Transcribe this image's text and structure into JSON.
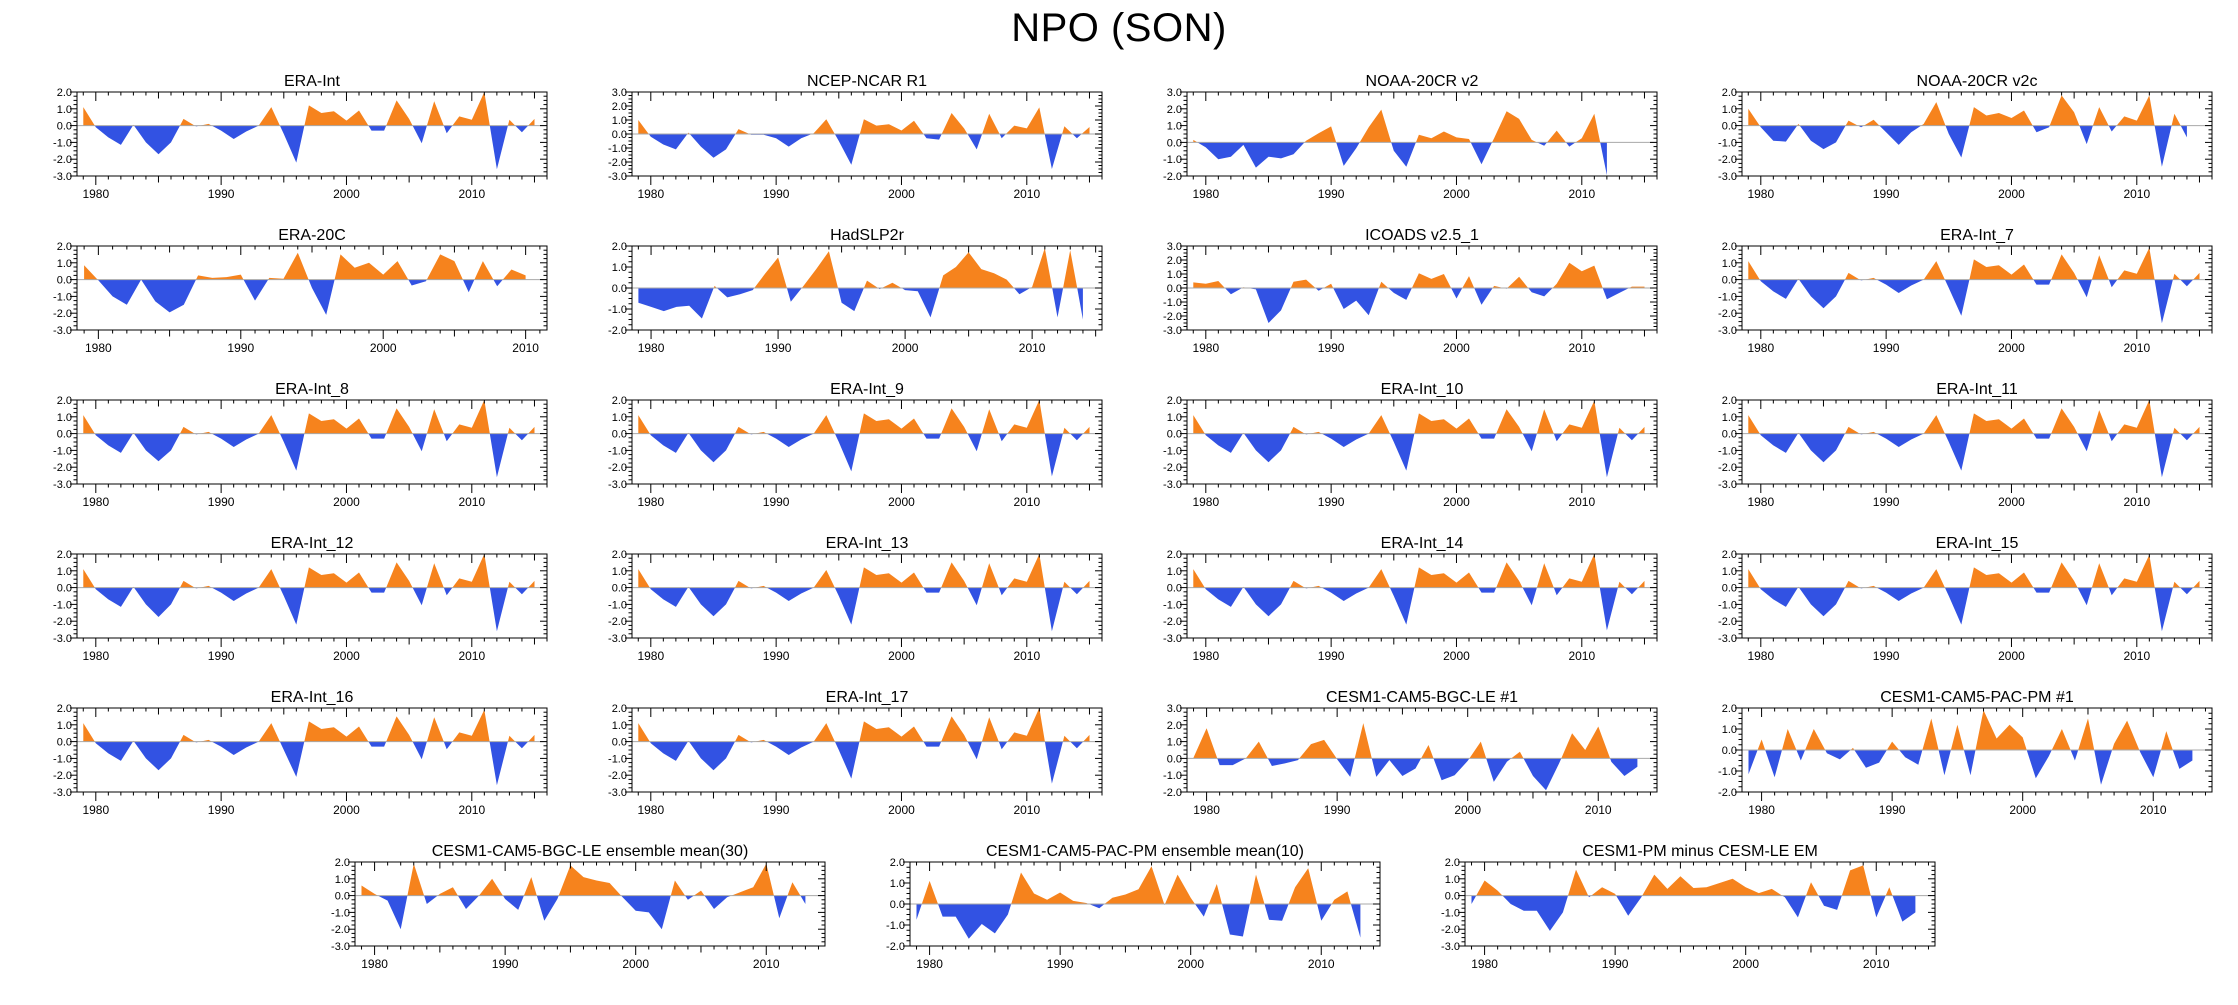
{
  "title": "NPO (SON)",
  "chart_data": {
    "type": "area",
    "common": {
      "x_tick_labels": [
        1980,
        1990,
        2000,
        2010
      ],
      "year_start": 1979,
      "positive_color": "#F6831D",
      "negative_color": "#3252E3",
      "zero_line_color": "#A8A8A8",
      "frame_color": "#000000",
      "grid": false,
      "legend": "none"
    },
    "panels": [
      {
        "title": "ERA-Int",
        "ylim": [
          -3,
          2
        ],
        "xlim": [
          1978.5,
          2016
        ],
        "values": [
          1.1,
          -0.1,
          -0.7,
          -1.15,
          0.05,
          -1.0,
          -1.7,
          -1.0,
          0.4,
          -0.05,
          0.1,
          -0.3,
          -0.8,
          -0.35,
          0.0,
          1.1,
          -0.5,
          -2.2,
          1.2,
          0.75,
          0.85,
          0.3,
          0.9,
          -0.3,
          -0.3,
          1.5,
          0.4,
          -1.05,
          1.45,
          -0.45,
          0.55,
          0.35,
          2.0,
          -2.6,
          0.35,
          -0.4,
          0.4
        ]
      },
      {
        "title": "NCEP-NCAR R1",
        "ylim": [
          -3,
          3
        ],
        "xlim": [
          1978.5,
          2016
        ],
        "values": [
          1.0,
          -0.2,
          -0.75,
          -1.1,
          0.1,
          -0.9,
          -1.7,
          -1.1,
          0.35,
          -0.05,
          -0.05,
          -0.3,
          -0.9,
          -0.3,
          0.05,
          1.05,
          -0.5,
          -2.2,
          1.05,
          0.6,
          0.7,
          0.25,
          0.95,
          -0.3,
          -0.4,
          1.5,
          0.4,
          -1.1,
          1.45,
          -0.3,
          0.6,
          0.4,
          1.9,
          -2.5,
          0.55,
          -0.3,
          0.5
        ]
      },
      {
        "title": "NOAA-20CR v2",
        "ylim": [
          -2,
          3
        ],
        "xlim": [
          1978.5,
          2016
        ],
        "values": [
          0.15,
          -0.3,
          -1.0,
          -0.85,
          -0.15,
          -1.5,
          -0.85,
          -0.95,
          -0.7,
          0.1,
          0.55,
          0.95,
          -1.4,
          -0.35,
          0.9,
          1.95,
          -0.5,
          -1.45,
          0.45,
          0.25,
          0.65,
          0.3,
          0.2,
          -1.3,
          0.25,
          1.85,
          1.4,
          0.15,
          -0.2,
          0.7,
          -0.25,
          0.25,
          1.7,
          -1.95
        ]
      },
      {
        "title": "NOAA-20CR v2c",
        "ylim": [
          -3,
          2
        ],
        "xlim": [
          1978.5,
          2016
        ],
        "values": [
          1.0,
          -0.1,
          -0.9,
          -0.95,
          0.1,
          -0.9,
          -1.4,
          -1.0,
          0.3,
          -0.1,
          0.35,
          -0.4,
          -1.15,
          -0.4,
          0.1,
          1.4,
          -0.5,
          -1.9,
          1.1,
          0.6,
          0.75,
          0.45,
          0.9,
          -0.4,
          -0.1,
          1.8,
          0.8,
          -1.1,
          1.1,
          -0.35,
          0.55,
          0.3,
          1.8,
          -2.45,
          0.7,
          -0.7
        ]
      },
      {
        "title": "ERA-20C",
        "ylim": [
          -3,
          2
        ],
        "xlim": [
          1978.5,
          2011.5
        ],
        "values": [
          0.85,
          -0.05,
          -1.0,
          -1.5,
          0.0,
          -1.3,
          -1.95,
          -1.5,
          0.25,
          0.1,
          0.15,
          0.3,
          -1.25,
          0.1,
          0.05,
          1.6,
          -0.5,
          -2.1,
          1.5,
          0.7,
          1.0,
          0.3,
          1.1,
          -0.35,
          -0.1,
          1.5,
          1.1,
          -0.75,
          1.1,
          -0.4,
          0.6,
          0.25
        ]
      },
      {
        "title": "HadSLP2r",
        "ylim": [
          -2,
          2
        ],
        "xlim": [
          1978.5,
          2015.5
        ],
        "values": [
          -0.7,
          -0.9,
          -1.1,
          -0.9,
          -0.85,
          -1.45,
          0.1,
          -0.45,
          -0.3,
          -0.1,
          0.7,
          1.45,
          -0.65,
          0.1,
          0.9,
          1.75,
          -0.7,
          -1.1,
          0.35,
          -0.05,
          0.25,
          -0.1,
          -0.15,
          -1.4,
          0.6,
          1.0,
          1.7,
          0.9,
          0.7,
          0.4,
          -0.3,
          0.05,
          1.9,
          -1.4,
          1.8,
          -1.5
        ]
      },
      {
        "title": "ICOADS v2.5_1",
        "ylim": [
          -3,
          3
        ],
        "xlim": [
          1978.5,
          2016
        ],
        "values": [
          0.4,
          0.3,
          0.5,
          -0.45,
          0.05,
          -0.1,
          -2.5,
          -1.6,
          0.45,
          0.6,
          -0.2,
          0.3,
          -1.5,
          -0.9,
          -1.95,
          0.45,
          -0.35,
          -0.85,
          1.05,
          0.65,
          1.0,
          -0.75,
          0.85,
          -1.2,
          0.15,
          -0.05,
          0.8,
          -0.3,
          -0.6,
          0.3,
          1.8,
          1.2,
          1.6,
          -0.8,
          -0.35,
          0.1,
          0.1
        ]
      },
      {
        "title": "ERA-Int_7",
        "ylim": [
          -3,
          2
        ],
        "xlim": [
          1978.5,
          2016
        ],
        "values": [
          1.1,
          -0.1,
          -0.7,
          -1.15,
          0.05,
          -1.0,
          -1.7,
          -1.0,
          0.4,
          -0.05,
          0.1,
          -0.3,
          -0.8,
          -0.35,
          0.0,
          1.1,
          -0.5,
          -2.15,
          1.2,
          0.75,
          0.85,
          0.3,
          0.9,
          -0.3,
          -0.3,
          1.5,
          0.4,
          -1.05,
          1.45,
          -0.45,
          0.55,
          0.35,
          1.9,
          -2.6,
          0.35,
          -0.4,
          0.4
        ]
      },
      {
        "title": "ERA-Int_8",
        "ylim": [
          -3,
          2
        ],
        "xlim": [
          1978.5,
          2016
        ],
        "values": [
          1.1,
          -0.1,
          -0.7,
          -1.15,
          0.05,
          -1.0,
          -1.65,
          -1.0,
          0.4,
          -0.05,
          0.1,
          -0.3,
          -0.8,
          -0.35,
          0.0,
          1.1,
          -0.5,
          -2.2,
          1.2,
          0.75,
          0.85,
          0.3,
          0.9,
          -0.3,
          -0.3,
          1.5,
          0.4,
          -1.05,
          1.45,
          -0.45,
          0.55,
          0.35,
          2.0,
          -2.6,
          0.35,
          -0.4,
          0.4
        ]
      },
      {
        "title": "ERA-Int_9",
        "ylim": [
          -3,
          2
        ],
        "xlim": [
          1978.5,
          2016
        ],
        "values": [
          1.1,
          -0.1,
          -0.7,
          -1.15,
          0.05,
          -1.0,
          -1.7,
          -1.0,
          0.4,
          -0.05,
          0.1,
          -0.3,
          -0.8,
          -0.35,
          0.0,
          1.1,
          -0.5,
          -2.25,
          1.2,
          0.75,
          0.85,
          0.3,
          0.9,
          -0.3,
          -0.3,
          1.5,
          0.4,
          -1.05,
          1.45,
          -0.45,
          0.55,
          0.35,
          2.0,
          -2.55,
          0.35,
          -0.4,
          0.4
        ]
      },
      {
        "title": "ERA-Int_10",
        "ylim": [
          -3,
          2
        ],
        "xlim": [
          1978.5,
          2016
        ],
        "values": [
          1.1,
          -0.1,
          -0.7,
          -1.15,
          0.05,
          -1.0,
          -1.7,
          -1.0,
          0.4,
          -0.05,
          0.1,
          -0.3,
          -0.8,
          -0.35,
          0.0,
          1.1,
          -0.5,
          -2.2,
          1.2,
          0.75,
          0.85,
          0.3,
          0.9,
          -0.3,
          -0.3,
          1.45,
          0.4,
          -1.05,
          1.45,
          -0.45,
          0.55,
          0.35,
          1.95,
          -2.6,
          0.35,
          -0.4,
          0.4
        ]
      },
      {
        "title": "ERA-Int_11",
        "ylim": [
          -3,
          2
        ],
        "xlim": [
          1978.5,
          2016
        ],
        "values": [
          1.1,
          -0.1,
          -0.7,
          -1.15,
          0.05,
          -1.0,
          -1.7,
          -1.0,
          0.4,
          -0.05,
          0.1,
          -0.3,
          -0.8,
          -0.35,
          0.0,
          1.1,
          -0.5,
          -2.2,
          1.2,
          0.75,
          0.85,
          0.3,
          0.9,
          -0.3,
          -0.3,
          1.5,
          0.4,
          -1.05,
          1.4,
          -0.45,
          0.55,
          0.35,
          2.0,
          -2.6,
          0.35,
          -0.4,
          0.4
        ]
      },
      {
        "title": "ERA-Int_12",
        "ylim": [
          -3,
          2
        ],
        "xlim": [
          1978.5,
          2016
        ],
        "values": [
          1.1,
          -0.1,
          -0.7,
          -1.15,
          0.05,
          -1.0,
          -1.75,
          -1.0,
          0.4,
          -0.05,
          0.1,
          -0.3,
          -0.8,
          -0.35,
          0.0,
          1.1,
          -0.5,
          -2.2,
          1.2,
          0.75,
          0.85,
          0.3,
          0.9,
          -0.3,
          -0.3,
          1.5,
          0.4,
          -1.05,
          1.45,
          -0.45,
          0.55,
          0.35,
          2.0,
          -2.6,
          0.35,
          -0.4,
          0.4
        ]
      },
      {
        "title": "ERA-Int_13",
        "ylim": [
          -3,
          2
        ],
        "xlim": [
          1978.5,
          2016
        ],
        "values": [
          1.1,
          -0.1,
          -0.7,
          -1.15,
          0.05,
          -1.0,
          -1.7,
          -1.0,
          0.4,
          -0.05,
          0.1,
          -0.3,
          -0.8,
          -0.35,
          0.0,
          1.05,
          -0.5,
          -2.2,
          1.2,
          0.75,
          0.85,
          0.3,
          0.9,
          -0.3,
          -0.3,
          1.5,
          0.4,
          -1.05,
          1.45,
          -0.45,
          0.55,
          0.35,
          2.0,
          -2.6,
          0.35,
          -0.4,
          0.4
        ]
      },
      {
        "title": "ERA-Int_14",
        "ylim": [
          -3,
          2
        ],
        "xlim": [
          1978.5,
          2016
        ],
        "values": [
          1.1,
          -0.1,
          -0.7,
          -1.15,
          0.05,
          -1.0,
          -1.7,
          -1.0,
          0.4,
          -0.05,
          0.1,
          -0.3,
          -0.8,
          -0.35,
          0.0,
          1.1,
          -0.5,
          -2.2,
          1.2,
          0.75,
          0.85,
          0.3,
          0.9,
          -0.3,
          -0.3,
          1.5,
          0.4,
          -1.05,
          1.45,
          -0.45,
          0.55,
          0.35,
          2.0,
          -2.55,
          0.35,
          -0.4,
          0.4
        ]
      },
      {
        "title": "ERA-Int_15",
        "ylim": [
          -3,
          2
        ],
        "xlim": [
          1978.5,
          2016
        ],
        "values": [
          1.1,
          -0.1,
          -0.7,
          -1.15,
          0.05,
          -1.0,
          -1.7,
          -1.0,
          0.4,
          -0.05,
          0.1,
          -0.3,
          -0.8,
          -0.35,
          0.0,
          1.1,
          -0.5,
          -2.2,
          1.2,
          0.75,
          0.85,
          0.3,
          0.9,
          -0.3,
          -0.3,
          1.5,
          0.4,
          -1.05,
          1.45,
          -0.45,
          0.55,
          0.35,
          1.95,
          -2.6,
          0.35,
          -0.4,
          0.4
        ]
      },
      {
        "title": "ERA-Int_16",
        "ylim": [
          -3,
          2
        ],
        "xlim": [
          1978.5,
          2016
        ],
        "values": [
          1.1,
          -0.1,
          -0.7,
          -1.15,
          0.05,
          -1.0,
          -1.7,
          -1.0,
          0.4,
          -0.05,
          0.1,
          -0.3,
          -0.8,
          -0.35,
          0.0,
          1.1,
          -0.5,
          -2.1,
          1.2,
          0.75,
          0.85,
          0.3,
          0.9,
          -0.3,
          -0.3,
          1.5,
          0.4,
          -1.05,
          1.45,
          -0.45,
          0.55,
          0.35,
          1.9,
          -2.6,
          0.35,
          -0.4,
          0.4
        ]
      },
      {
        "title": "ERA-Int_17",
        "ylim": [
          -3,
          2
        ],
        "xlim": [
          1978.5,
          2016
        ],
        "values": [
          1.1,
          -0.1,
          -0.7,
          -1.15,
          0.05,
          -1.0,
          -1.7,
          -1.0,
          0.4,
          -0.05,
          0.1,
          -0.3,
          -0.8,
          -0.35,
          0.0,
          1.1,
          -0.5,
          -2.2,
          1.2,
          0.75,
          0.85,
          0.3,
          0.9,
          -0.3,
          -0.3,
          1.5,
          0.4,
          -1.05,
          1.45,
          -0.45,
          0.55,
          0.35,
          2.0,
          -2.5,
          0.35,
          -0.4,
          0.4
        ]
      },
      {
        "title": "CESM1-CAM5-BGC-LE #1",
        "ylim": [
          -2,
          3
        ],
        "xlim": [
          1978.5,
          2014.5
        ],
        "values": [
          0.05,
          1.8,
          -0.4,
          -0.4,
          0.0,
          1.0,
          -0.45,
          -0.3,
          -0.1,
          0.85,
          1.1,
          -0.05,
          -1.1,
          2.1,
          -1.1,
          -0.1,
          -1.05,
          -0.6,
          0.8,
          -1.3,
          -1.0,
          -0.15,
          1.0,
          -1.4,
          -0.2,
          0.4,
          -1.05,
          -1.9,
          -0.3,
          1.5,
          0.5,
          1.9,
          -0.2,
          -1.05,
          -0.5
        ]
      },
      {
        "title": "CESM1-CAM5-PAC-PM #1",
        "ylim": [
          -2,
          2
        ],
        "xlim": [
          1978.5,
          2014.5
        ],
        "values": [
          -1.15,
          0.5,
          -1.3,
          1.0,
          -0.5,
          1.0,
          -0.15,
          -0.45,
          0.1,
          -0.85,
          -0.6,
          0.4,
          -0.35,
          -0.7,
          1.5,
          -1.2,
          1.2,
          -1.2,
          1.9,
          0.55,
          1.2,
          0.6,
          -1.35,
          -0.3,
          1.0,
          -0.5,
          1.5,
          -1.65,
          0.3,
          1.4,
          -0.1,
          -1.3,
          0.9,
          -0.9,
          -0.5
        ]
      },
      {
        "title": "CESM1-CAM5-BGC-LE ensemble mean(30)",
        "ylim": [
          -3,
          2
        ],
        "xlim": [
          1978.5,
          2014.5
        ],
        "values": [
          0.6,
          0.1,
          -0.3,
          -2.0,
          1.9,
          -0.5,
          0.1,
          0.5,
          -0.8,
          0.0,
          1.0,
          -0.2,
          -0.85,
          1.1,
          -1.5,
          -0.2,
          1.8,
          1.1,
          0.9,
          0.75,
          -0.1,
          -0.9,
          -1.0,
          -2.0,
          0.9,
          -0.25,
          0.3,
          -0.8,
          -0.1,
          0.2,
          0.5,
          1.9,
          -1.35,
          0.8,
          -0.5
        ]
      },
      {
        "title": "CESM1-CAM5-PAC-PM ensemble mean(10)",
        "ylim": [
          -2,
          2
        ],
        "xlim": [
          1978.5,
          2014.5
        ],
        "values": [
          -0.75,
          1.1,
          -0.6,
          -0.6,
          -1.65,
          -0.95,
          -1.4,
          -0.5,
          1.5,
          0.5,
          0.2,
          0.55,
          0.15,
          0.05,
          -0.2,
          0.3,
          0.45,
          0.7,
          1.8,
          -0.05,
          1.4,
          0.3,
          -0.6,
          0.95,
          -1.45,
          -1.55,
          1.4,
          -0.75,
          -0.8,
          0.8,
          1.7,
          -0.8,
          0.2,
          0.6,
          -1.6
        ]
      },
      {
        "title": "CESM1-PM minus CESM-LE EM",
        "ylim": [
          -3,
          2
        ],
        "xlim": [
          1978.5,
          2014.5
        ],
        "values": [
          -0.5,
          0.9,
          0.3,
          -0.5,
          -0.9,
          -0.9,
          -2.1,
          -1.0,
          1.55,
          -0.1,
          0.5,
          0.1,
          -1.2,
          -0.1,
          1.25,
          0.4,
          1.15,
          0.45,
          0.5,
          0.75,
          1.0,
          0.5,
          0.15,
          0.4,
          -0.1,
          -1.3,
          0.8,
          -0.6,
          -0.85,
          1.5,
          1.8,
          -1.3,
          0.5,
          -1.55,
          -1.0
        ]
      }
    ]
  }
}
